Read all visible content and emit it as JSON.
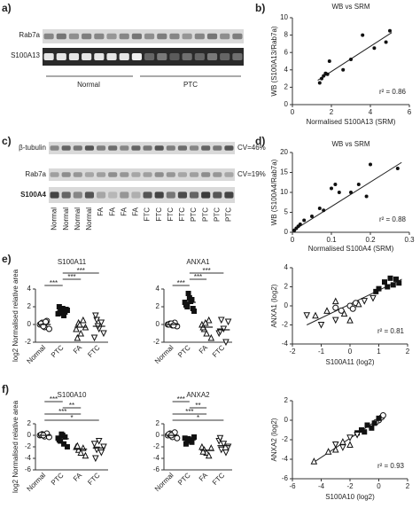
{
  "panels": {
    "a": "a)",
    "b": "b)",
    "c": "c)",
    "d": "d)",
    "e": "e)",
    "f": "f)"
  },
  "blot_a": {
    "rows": [
      "Rab7a",
      "S100A13"
    ],
    "groups": [
      "Normal",
      "PTC"
    ]
  },
  "blot_c": {
    "rows": [
      "β-tubulin",
      "Rab7a",
      "S100A4"
    ],
    "cv": [
      "CV=46%",
      "CV=19%"
    ],
    "lanes": [
      "Normal",
      "Normal",
      "Normal",
      "Normal",
      "FA",
      "FA",
      "FA",
      "FA",
      "FTC",
      "FTC",
      "FTC",
      "FTC",
      "PTC",
      "PTC",
      "PTC",
      "PTC"
    ]
  },
  "chart_data": [
    {
      "type": "scatter",
      "title": "WB vs SRM",
      "x_label": "Normalised S100A13 (SRM)",
      "y_label": "WB (S100A13/Rab7a)",
      "annotation": "r² = 0.86",
      "xlim": [
        0,
        6
      ],
      "xticks": [
        0,
        2,
        4,
        6
      ],
      "ylim": [
        0,
        10
      ],
      "yticks": [
        0,
        2,
        4,
        6,
        8,
        10
      ],
      "series": [
        {
          "marker": "dot",
          "x": [
            1.4,
            1.5,
            1.6,
            1.7,
            1.8,
            1.9,
            2.6,
            3.0,
            3.6,
            4.2,
            4.8,
            5.0
          ],
          "y": [
            2.5,
            3,
            3.3,
            3.6,
            3.5,
            5,
            4,
            5.2,
            8,
            6.5,
            7.2,
            8.5
          ]
        }
      ],
      "fit": {
        "x": [
          1.3,
          5.1
        ],
        "y": [
          2.8,
          8.3
        ]
      }
    },
    {
      "type": "scatter",
      "title": "WB vs SRM",
      "x_label": "Normalised S100A4 (SRM)",
      "y_label": "WB (S100A4/Rab7a)",
      "annotation": "r² = 0.88",
      "xlim": [
        0,
        0.3
      ],
      "xticks": [
        0,
        0.1,
        0.2,
        0.3
      ],
      "ylim": [
        0,
        20
      ],
      "yticks": [
        0,
        5,
        10,
        15,
        20
      ],
      "series": [
        {
          "marker": "dot",
          "x": [
            0.005,
            0.01,
            0.015,
            0.02,
            0.03,
            0.05,
            0.07,
            0.08,
            0.1,
            0.11,
            0.12,
            0.15,
            0.17,
            0.19,
            0.2,
            0.27
          ],
          "y": [
            0.5,
            1,
            1.5,
            2,
            3,
            4,
            6,
            5.5,
            11,
            12,
            10,
            10,
            12,
            9,
            17,
            16
          ]
        }
      ],
      "fit": {
        "x": [
          0,
          0.28
        ],
        "y": [
          0.3,
          17.5
        ]
      }
    },
    {
      "type": "strip",
      "title": "S100A11",
      "y_label": "log2 Normalised relative area",
      "categories": [
        "Normal",
        "PTC",
        "FA",
        "FTC"
      ],
      "ylim": [
        -2,
        4
      ],
      "yticks": [
        -2,
        0,
        2,
        4
      ],
      "values": [
        [
          0,
          0.2,
          -0.3,
          0.4,
          -0.5,
          0.1,
          -0.2,
          0.3
        ],
        [
          1.2,
          1.5,
          1.8,
          1.4,
          1.6,
          2.0,
          1.3,
          1.0,
          1.7
        ],
        [
          -0.5,
          0.2,
          -1.0,
          0.5,
          -0.3,
          -1.5,
          0.0
        ],
        [
          -1.5,
          0.5,
          -0.5,
          0.2,
          -1.0,
          1.0,
          -0.2
        ]
      ],
      "medians": [
        0,
        1.5,
        -0.3,
        -0.2
      ],
      "brackets": [
        {
          "label": "***",
          "between": [
            "Normal",
            "PTC"
          ]
        },
        {
          "label": "***",
          "between": [
            "PTC",
            "FA"
          ]
        },
        {
          "label": "***",
          "between": [
            "PTC",
            "FTC"
          ]
        }
      ]
    },
    {
      "type": "strip",
      "title": "ANXA1",
      "categories": [
        "Normal",
        "PTC",
        "FA",
        "FTC"
      ],
      "ylim": [
        -2,
        4
      ],
      "yticks": [
        -2,
        0,
        2,
        4
      ],
      "values": [
        [
          0,
          0.1,
          -0.1,
          0.2,
          -0.2,
          0,
          0.1,
          -0.1
        ],
        [
          2.5,
          2.0,
          3.0,
          2.8,
          1.5,
          2.2,
          3.5,
          2.6,
          1.8
        ],
        [
          0,
          -0.5,
          -1.0,
          0.5,
          -1.5,
          -0.3,
          0.2
        ],
        [
          -1.0,
          0.5,
          -0.5,
          -2.0,
          0.3,
          -0.8
        ]
      ],
      "medians": [
        0,
        2.5,
        -0.3,
        -0.6
      ],
      "brackets": [
        {
          "label": "***",
          "between": [
            "Normal",
            "PTC"
          ]
        },
        {
          "label": "***",
          "between": [
            "PTC",
            "FA"
          ]
        },
        {
          "label": "***",
          "between": [
            "PTC",
            "FTC"
          ]
        }
      ]
    },
    {
      "type": "scatter",
      "x_label": "S100A11 (log2)",
      "y_label": "ANXA1 (log2)",
      "annotation": "r² = 0.81",
      "xlim": [
        -2,
        2
      ],
      "xticks": [
        -2,
        -1,
        0,
        1,
        2
      ],
      "ylim": [
        -4,
        4
      ],
      "yticks": [
        -4,
        -2,
        0,
        2,
        4
      ],
      "series": [
        {
          "marker": "circle",
          "x": [
            -0.5,
            0,
            0.2,
            -0.3,
            0.1
          ],
          "y": [
            -0.2,
            0,
            0.3,
            -0.5,
            -0.3
          ]
        },
        {
          "marker": "square",
          "x": [
            1.2,
            1.5,
            1.0,
            1.6,
            1.3,
            0.9,
            1.7,
            1.4
          ],
          "y": [
            2.5,
            2.2,
            1.8,
            2.8,
            2.0,
            1.5,
            2.4,
            2.9
          ]
        },
        {
          "marker": "triangle",
          "x": [
            -1.2,
            -0.8,
            -0.5,
            0.3,
            0,
            -0.2
          ],
          "y": [
            -1.0,
            -0.5,
            0.5,
            0.2,
            -1.5,
            -0.8
          ]
        },
        {
          "marker": "triangle-down",
          "x": [
            -1.5,
            -0.5,
            0.5,
            0.8,
            -1
          ],
          "y": [
            -1.0,
            -1.5,
            0.5,
            0.8,
            -2.0
          ]
        }
      ],
      "fit": {
        "x": [
          -1.5,
          1.8
        ],
        "y": [
          -2,
          2.8
        ]
      }
    },
    {
      "type": "strip",
      "title": "S100A10",
      "y_label": "log2 Normalised relative area",
      "categories": [
        "Normal",
        "PTC",
        "FA",
        "FTC"
      ],
      "ylim": [
        -6,
        2
      ],
      "yticks": [
        -6,
        -4,
        -2,
        0,
        2
      ],
      "values": [
        [
          0,
          0.2,
          -0.2,
          0.3,
          -0.3,
          0.1,
          0
        ],
        [
          -0.5,
          -1.0,
          0,
          -0.3,
          -2.0,
          -0.8,
          0.2,
          -1.5
        ],
        [
          -2,
          -2.5,
          -3,
          -2.2,
          -3.5,
          -1.8
        ],
        [
          -1.5,
          -2.5,
          -1,
          -3,
          -2,
          -4
        ]
      ],
      "medians": [
        0,
        -0.6,
        -2.4,
        -2.2
      ],
      "brackets": [
        {
          "label": "*",
          "between": [
            "Normal",
            "FTC"
          ]
        },
        {
          "label": "***",
          "between": [
            "Normal",
            "FA"
          ]
        },
        {
          "label": "**",
          "between": [
            "PTC",
            "FA"
          ]
        },
        {
          "label": "***",
          "between": [
            "Normal",
            "PTC"
          ]
        }
      ]
    },
    {
      "type": "strip",
      "title": "ANXA2",
      "categories": [
        "Normal",
        "PTC",
        "FA",
        "FTC"
      ],
      "ylim": [
        -6,
        2
      ],
      "yticks": [
        -6,
        -4,
        -2,
        0,
        2
      ],
      "values": [
        [
          0,
          0.3,
          -0.3,
          0.5,
          -0.5,
          0.2,
          0
        ],
        [
          -0.5,
          -1.0,
          -0.8,
          -1.2,
          -0.3,
          -1.5,
          -0.6
        ],
        [
          -2,
          -2.5,
          -3,
          -3.5,
          -2.2,
          -2.8
        ],
        [
          -1,
          -2.5,
          -1.5,
          -3,
          -2,
          -0.5
        ]
      ],
      "medians": [
        0,
        -0.8,
        -2.6,
        -1.8
      ],
      "brackets": [
        {
          "label": "*",
          "between": [
            "Normal",
            "FTC"
          ]
        },
        {
          "label": "***",
          "between": [
            "Normal",
            "FA"
          ]
        },
        {
          "label": "**",
          "between": [
            "PTC",
            "FA"
          ]
        },
        {
          "label": "***",
          "between": [
            "Normal",
            "PTC"
          ]
        }
      ]
    },
    {
      "type": "scatter",
      "x_label": "S100A10 (log2)",
      "y_label": "ANXA2 (log2)",
      "annotation": "r² = 0.93",
      "xlim": [
        -6,
        2
      ],
      "xticks": [
        -6,
        -4,
        -2,
        0,
        2
      ],
      "ylim": [
        -6,
        2
      ],
      "yticks": [
        -6,
        -4,
        -2,
        0,
        2
      ],
      "series": [
        {
          "marker": "circle",
          "x": [
            0,
            0.2,
            -0.2,
            0.3
          ],
          "y": [
            0,
            0.3,
            -0.2,
            0.5
          ]
        },
        {
          "marker": "square",
          "x": [
            -0.5,
            -1,
            -0.8,
            -1.5,
            -0.3,
            0,
            -1.2
          ],
          "y": [
            -0.8,
            -1.2,
            -0.5,
            -1.3,
            -0.3,
            0.2,
            -1.0
          ]
        },
        {
          "marker": "triangle",
          "x": [
            -3,
            -2.5,
            -3.5,
            -2,
            -4.5
          ],
          "y": [
            -3,
            -2.2,
            -3.2,
            -2.5,
            -4.2
          ]
        },
        {
          "marker": "triangle-down",
          "x": [
            -2.5,
            -2,
            -3,
            -1.5
          ],
          "y": [
            -2.8,
            -1.8,
            -2.5,
            -1.5
          ]
        }
      ],
      "fit": {
        "x": [
          -4.5,
          0.5
        ],
        "y": [
          -4.3,
          0.6
        ]
      }
    }
  ]
}
